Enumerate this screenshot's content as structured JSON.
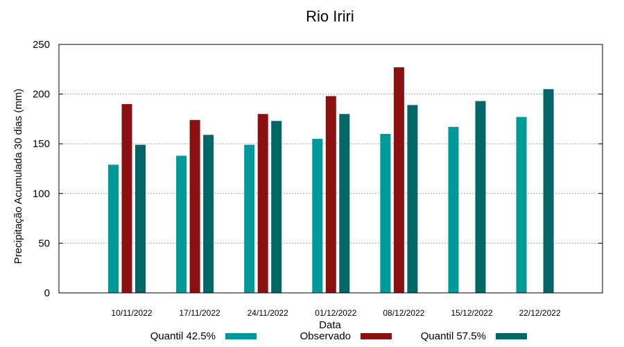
{
  "chart_data": {
    "type": "bar",
    "title": "Rio Iriri",
    "xlabel": "Data",
    "ylabel": "Precipitação Acumulada 30 dias (mm)",
    "ylim": [
      0,
      250
    ],
    "yticks": [
      0,
      50,
      100,
      150,
      200,
      250
    ],
    "grid": true,
    "legend_position": "bottom",
    "categories": [
      "10/11/2022",
      "17/11/2022",
      "24/11/2022",
      "01/12/2022",
      "08/12/2022",
      "15/12/2022",
      "22/12/2022"
    ],
    "series": [
      {
        "name": "Quantil 42.5%",
        "color": "#009999",
        "values": [
          129,
          138,
          149,
          155,
          160,
          167,
          177
        ]
      },
      {
        "name": "Observado",
        "color": "#8b1010",
        "values": [
          190,
          174,
          180,
          198,
          227,
          null,
          null
        ]
      },
      {
        "name": "Quantil 57.5%",
        "color": "#006666",
        "values": [
          149,
          159,
          173,
          180,
          189,
          193,
          205
        ]
      }
    ]
  }
}
